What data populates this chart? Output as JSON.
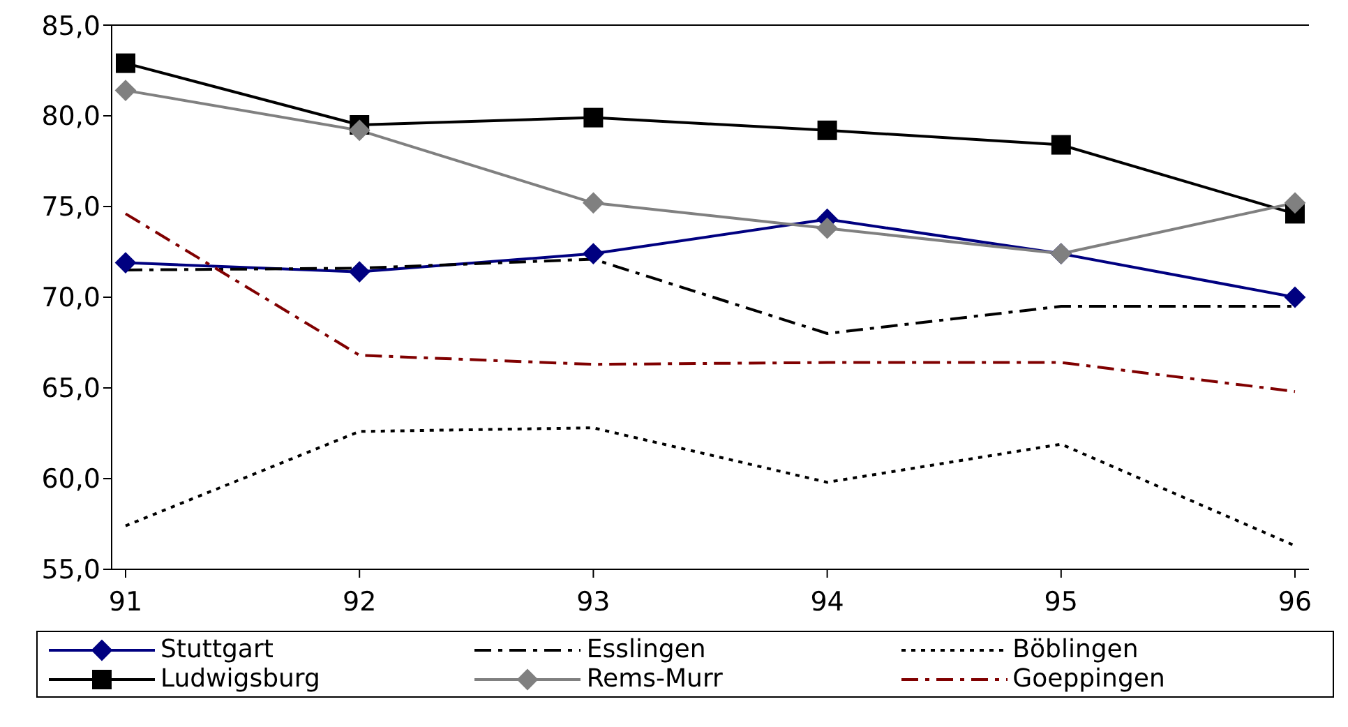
{
  "chart_data": {
    "type": "line",
    "categories": [
      "91",
      "92",
      "93",
      "94",
      "95",
      "96"
    ],
    "series": [
      {
        "name": "Stuttgart",
        "color": "#000080",
        "marker": "diamond",
        "line_style": "solid",
        "values": [
          71.9,
          71.4,
          72.4,
          74.3,
          72.4,
          70.0
        ]
      },
      {
        "name": "Esslingen",
        "color": "#000000",
        "marker": "none",
        "line_style": "dashed",
        "values": [
          71.5,
          71.6,
          72.1,
          68.0,
          69.5,
          69.5
        ]
      },
      {
        "name": "Böblingen",
        "color": "#000000",
        "marker": "none",
        "line_style": "dotted",
        "values": [
          57.4,
          62.6,
          62.8,
          59.8,
          61.9,
          56.3
        ]
      },
      {
        "name": "Ludwigsburg",
        "color": "#000000",
        "marker": "square",
        "line_style": "solid",
        "values": [
          82.9,
          79.5,
          79.9,
          79.2,
          78.4,
          74.6
        ]
      },
      {
        "name": "Rems-Murr",
        "color": "#808080",
        "marker": "diamond",
        "line_style": "solid",
        "values": [
          81.4,
          79.2,
          75.2,
          73.8,
          72.4,
          75.2
        ]
      },
      {
        "name": "Goeppingen",
        "color": "#800000",
        "marker": "none",
        "line_style": "dashed",
        "values": [
          74.6,
          66.8,
          66.3,
          66.4,
          66.4,
          64.8
        ]
      }
    ],
    "ylim": [
      55,
      85
    ],
    "yticks": [
      {
        "value": 55,
        "label": "55,0"
      },
      {
        "value": 60,
        "label": "60,0"
      },
      {
        "value": 65,
        "label": "65,0"
      },
      {
        "value": 70,
        "label": "70,0"
      },
      {
        "value": 75,
        "label": "75,0"
      },
      {
        "value": 80,
        "label": "80,0"
      },
      {
        "value": 85,
        "label": "85,0"
      }
    ],
    "grid": false,
    "legend": "bottom"
  }
}
